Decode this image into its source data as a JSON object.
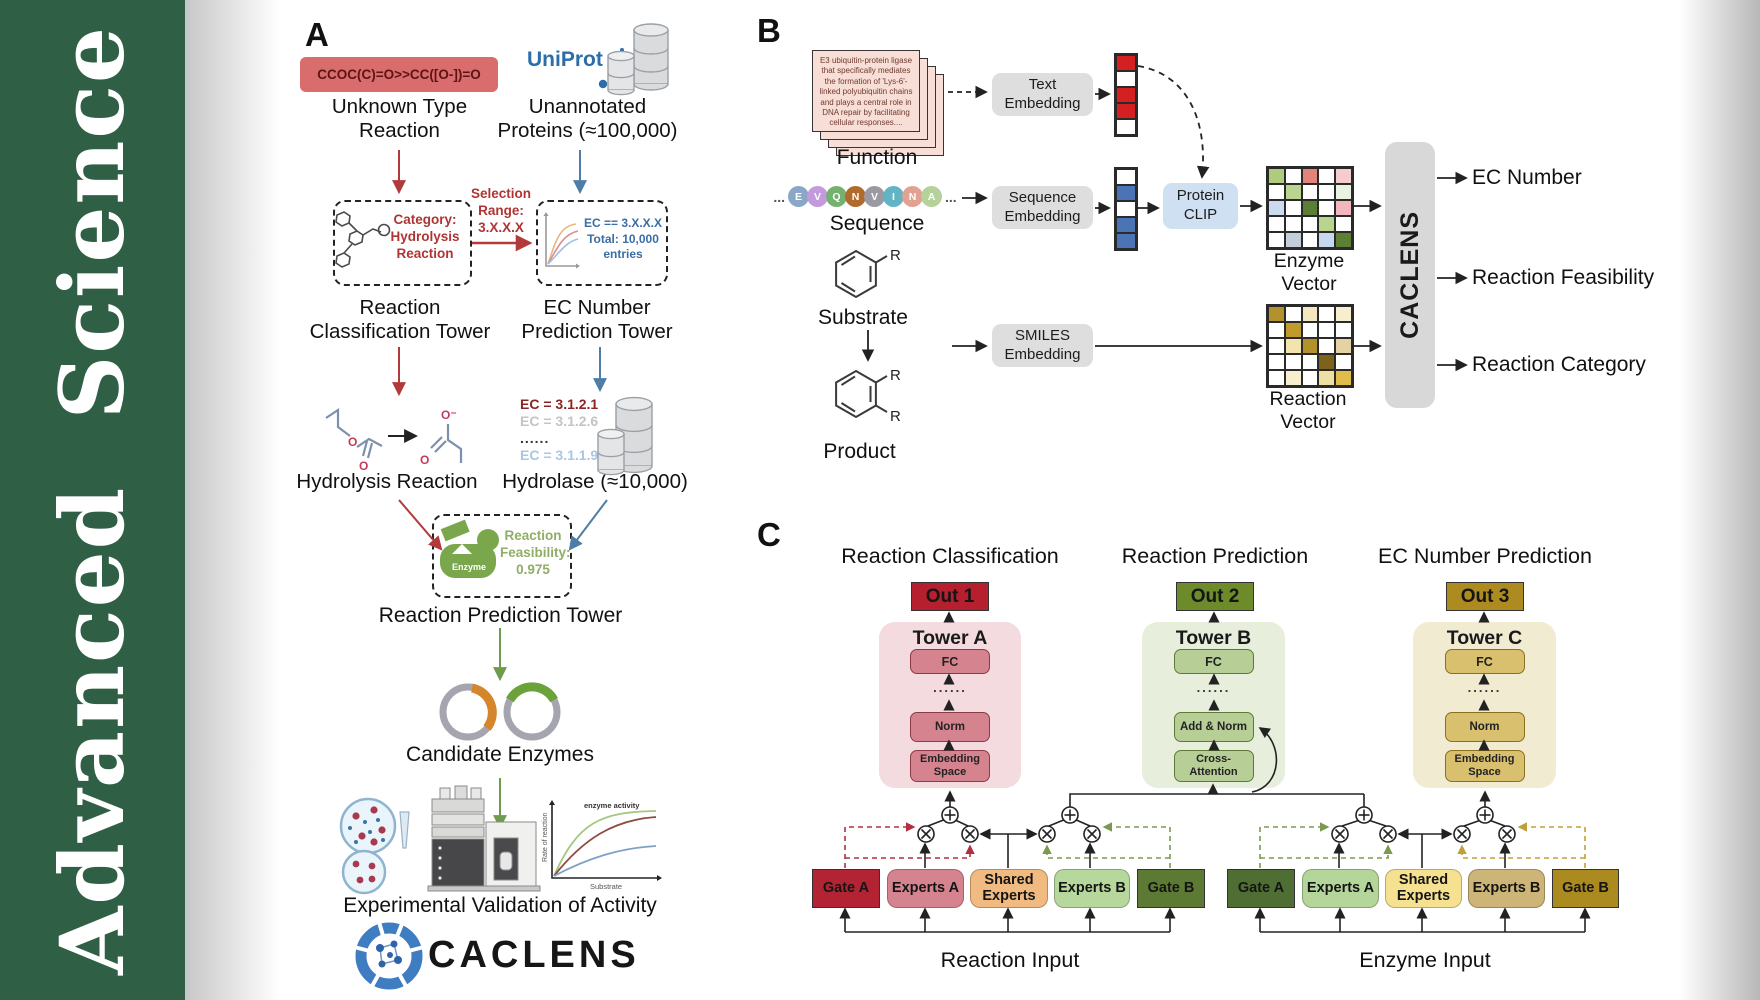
{
  "journal": {
    "name": "Advanced Science",
    "brand_green": "#2f5f45"
  },
  "panel_a": {
    "label": "A",
    "smiles": "CCOC(C)=O>>CC([O-])=O",
    "unknown_label": "Unknown Type Reaction",
    "uniprot": "UniProt",
    "unannotated_label": "Unannotated Proteins (≈100,000)",
    "classification_box_lines": [
      "Category:",
      "Hydrolysis",
      "Reaction"
    ],
    "selection_label": "Selection Range: 3.X.X.X",
    "ec_box_lines": [
      "EC == 3.X.X.X",
      "Total: 10,000",
      "entries"
    ],
    "classification_tower_label": "Reaction Classification Tower",
    "ec_tower_label": "EC Number Prediction Tower",
    "atom_o": "O",
    "atom_o_minus": "O⁻",
    "ec_list": [
      {
        "text": "EC = 3.1.2.1",
        "color": "#8b2424"
      },
      {
        "text": "EC = 3.1.2.6",
        "color": "#c4c4c4"
      },
      {
        "text": "......",
        "color": "#333333"
      },
      {
        "text": "EC = 3.1.1.9",
        "color": "#a9c6e4"
      }
    ],
    "hydrolysis_label": "Hydrolysis Reaction",
    "hydrolase_label": "Hydrolase (≈10,000)",
    "enzyme_label": "Enzyme",
    "feasibility_lines": [
      "Reaction",
      "Feasibility:",
      "0.975"
    ],
    "prediction_tower_label": "Reaction Prediction Tower",
    "candidate_label": "Candidate Enzymes",
    "activity_plot": {
      "annotation": "enzyme activity",
      "ylabel": "Rate of reaction",
      "xlabel": "Substrate"
    },
    "validation_label": "Experimental Validation of Activity",
    "brand": "CACLENS"
  },
  "panel_b": {
    "label": "B",
    "function_card_text": "E3 ubiquitin-protein ligase that specifically mediates the formation of 'Lys-6'-linked polyubiquitin chains and plays a central role in DNA repair by facilitating cellular responses....",
    "function_label": "Function",
    "ellipsis": "...",
    "residues": [
      {
        "letter": "E",
        "color": "#8ca6c6"
      },
      {
        "letter": "V",
        "color": "#c39ade"
      },
      {
        "letter": "Q",
        "color": "#74b06e"
      },
      {
        "letter": "N",
        "color": "#b26a2c"
      },
      {
        "letter": "V",
        "color": "#9a9aa2"
      },
      {
        "letter": "I",
        "color": "#62b4c4"
      },
      {
        "letter": "N",
        "color": "#e2a291"
      },
      {
        "letter": "A",
        "color": "#b5d29b"
      }
    ],
    "sequence_label": "Sequence",
    "substrate_label": "Substrate",
    "product_label": "Product",
    "r_label": "R",
    "text_embedding": "Text Embedding",
    "sequence_embedding": "Sequence Embedding",
    "smiles_embedding": "SMILES Embedding",
    "protein_clip": "Protein CLIP",
    "text_vector": [
      "#d42020",
      "#ffffff",
      "#d42020",
      "#d42020",
      "#ffffff"
    ],
    "seq_vector": [
      "#ffffff",
      "#4a74b4",
      "#ffffff",
      "#4a74b4",
      "#4a74b4"
    ],
    "enzyme_vector_label": "Enzyme Vector",
    "enzyme_vector_cells": [
      "#aecb7e",
      "#ffffff",
      "#e2837c",
      "#ffffff",
      "#f5cdd1",
      "#ffffff",
      "#b8d48e",
      "#ffffff",
      "#ffffff",
      "#eaf2e0",
      "#ccdcf0",
      "#ffffff",
      "#5d7f33",
      "#ffffff",
      "#f0b8bd",
      "#ffffff",
      "#ffffff",
      "#ffffff",
      "#b8d48e",
      "#ffffff",
      "#ffffff",
      "#c3cedd",
      "#ffffff",
      "#c5d8ef",
      "#5d7f33"
    ],
    "reaction_vector_label": "Reaction Vector",
    "reaction_vector_cells": [
      "#b3912c",
      "#ffffff",
      "#f3e8c0",
      "#ffffff",
      "#f6eecd",
      "#ffffff",
      "#c09a2a",
      "#ffffff",
      "#ffffff",
      "#ffffff",
      "#ffffff",
      "#f3e4ae",
      "#b3912c",
      "#ffffff",
      "#e3d3a4",
      "#ffffff",
      "#ffffff",
      "#ffffff",
      "#7c621a",
      "#ffffff",
      "#ffffff",
      "#f6eecd",
      "#ffffff",
      "#f0dfa2",
      "#e0bc4a"
    ],
    "caclens_bar": "CACLENS",
    "outputs": [
      "EC Number",
      "Reaction Feasibility",
      "Reaction Category"
    ]
  },
  "panel_c": {
    "label": "C",
    "columns": [
      {
        "header": "Reaction Classification",
        "out": "Out 1",
        "out_bg": "#b51f2e",
        "tower_title": "Tower A",
        "tower_bg": "#f3dbdf",
        "box_bg": "#d5848f",
        "box_border": "#8c3a44",
        "dots": "......",
        "boxes": [
          "FC",
          "Norm",
          "Embedding Space"
        ]
      },
      {
        "header": "Reaction Prediction",
        "out": "Out 2",
        "out_bg": "#6d8b2a",
        "tower_title": "Tower B",
        "tower_bg": "#e7eedb",
        "box_bg": "#b7cf97",
        "box_border": "#5d7a36",
        "dots": "......",
        "boxes": [
          "FC",
          "Add & Norm",
          "Cross-Attention"
        ]
      },
      {
        "header": "EC Number Prediction",
        "out": "Out 3",
        "out_bg": "#ad8b20",
        "tower_title": "Tower C",
        "tower_bg": "#f1ebd2",
        "box_bg": "#d9c06e",
        "box_border": "#8a6f1e",
        "dots": "......",
        "boxes": [
          "FC",
          "Norm",
          "Embedding Space"
        ]
      }
    ],
    "groups": [
      {
        "input_label": "Reaction Input",
        "boxes": [
          {
            "label": "Gate A",
            "bg": "#b22433"
          },
          {
            "label": "Experts A",
            "bg": "#d5848f"
          },
          {
            "label": "Shared Experts",
            "bg": "#f0ba80"
          },
          {
            "label": "Experts B",
            "bg": "#b7d89c"
          },
          {
            "label": "Gate B",
            "bg": "#5d7a35"
          }
        ]
      },
      {
        "input_label": "Enzyme Input",
        "boxes": [
          {
            "label": "Gate A",
            "bg": "#4f6e33"
          },
          {
            "label": "Experts A",
            "bg": "#b4d69b"
          },
          {
            "label": "Shared Experts",
            "bg": "#f6e190"
          },
          {
            "label": "Experts B",
            "bg": "#cdb578"
          },
          {
            "label": "Gate B",
            "bg": "#ab8a20"
          }
        ]
      }
    ]
  }
}
